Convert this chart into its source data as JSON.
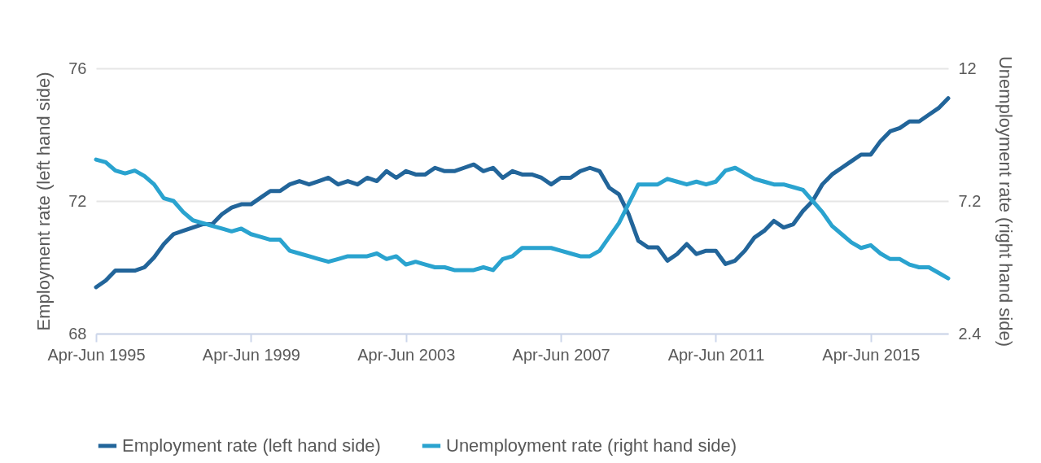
{
  "chart_data": {
    "type": "line",
    "categories": [
      "Apr-Jun 1995",
      null,
      null,
      null,
      null,
      null,
      null,
      null,
      null,
      null,
      null,
      null,
      null,
      null,
      null,
      null,
      "Apr-Jun 1999",
      null,
      null,
      null,
      null,
      null,
      null,
      null,
      null,
      null,
      null,
      null,
      null,
      null,
      null,
      null,
      "Apr-Jun 2003",
      null,
      null,
      null,
      null,
      null,
      null,
      null,
      null,
      null,
      null,
      null,
      null,
      null,
      null,
      null,
      "Apr-Jun 2007",
      null,
      null,
      null,
      null,
      null,
      null,
      null,
      null,
      null,
      null,
      null,
      null,
      null,
      null,
      null,
      "Apr-Jun 2011",
      null,
      null,
      null,
      null,
      null,
      null,
      null,
      null,
      null,
      null,
      null,
      null,
      null,
      null,
      null,
      "Apr-Jun 2015",
      null,
      null,
      null,
      null,
      null,
      null,
      null,
      null
    ],
    "series": [
      {
        "name": "Employment rate (left hand side)",
        "color": "#22659a",
        "values": [
          69.4,
          69.6,
          69.9,
          69.9,
          69.9,
          70.0,
          70.3,
          70.7,
          71.0,
          71.1,
          71.2,
          71.3,
          71.3,
          71.6,
          71.8,
          71.9,
          71.9,
          72.1,
          72.3,
          72.3,
          72.5,
          72.6,
          72.5,
          72.6,
          72.7,
          72.5,
          72.6,
          72.5,
          72.7,
          72.6,
          72.9,
          72.7,
          72.9,
          72.8,
          72.8,
          73.0,
          72.9,
          72.9,
          73.0,
          73.1,
          72.9,
          73.0,
          72.7,
          72.9,
          72.8,
          72.8,
          72.7,
          72.5,
          72.7,
          72.7,
          72.9,
          73.0,
          72.9,
          72.4,
          72.2,
          71.6,
          70.8,
          70.6,
          70.6,
          70.2,
          70.4,
          70.7,
          70.4,
          70.5,
          70.5,
          70.1,
          70.2,
          70.5,
          70.9,
          71.1,
          71.4,
          71.2,
          71.3,
          71.7,
          72.0,
          72.5,
          72.8,
          73.0,
          73.2,
          73.4,
          73.4,
          73.8,
          74.1,
          74.2,
          74.4,
          74.4,
          74.6,
          74.8,
          75.1
        ]
      },
      {
        "name": "Unemployment rate (right hand side)",
        "color": "#2aa3cf",
        "axis": "y2",
        "values": [
          8.7,
          8.6,
          8.3,
          8.2,
          8.3,
          8.1,
          7.8,
          7.3,
          7.2,
          6.8,
          6.5,
          6.4,
          6.3,
          6.2,
          6.1,
          6.2,
          6.0,
          5.9,
          5.8,
          5.8,
          5.4,
          5.3,
          5.2,
          5.1,
          5.0,
          5.1,
          5.2,
          5.2,
          5.2,
          5.3,
          5.1,
          5.2,
          4.9,
          5.0,
          4.9,
          4.8,
          4.8,
          4.7,
          4.7,
          4.7,
          4.8,
          4.7,
          5.1,
          5.2,
          5.5,
          5.5,
          5.5,
          5.5,
          5.4,
          5.3,
          5.2,
          5.2,
          5.4,
          5.9,
          6.4,
          7.1,
          7.8,
          7.8,
          7.8,
          8.0,
          7.9,
          7.8,
          7.9,
          7.8,
          7.9,
          8.3,
          8.4,
          8.2,
          8.0,
          7.9,
          7.8,
          7.8,
          7.7,
          7.6,
          7.2,
          6.8,
          6.3,
          6.0,
          5.7,
          5.5,
          5.6,
          5.3,
          5.1,
          5.1,
          4.9,
          4.8,
          4.8,
          4.6,
          4.4
        ]
      }
    ],
    "ylabel": "Employment rate (left hand side)",
    "y2label": "Unemployment rate (right hand side)",
    "ylim": [
      68,
      76
    ],
    "yticks": [
      68,
      72,
      76
    ],
    "y2lim": [
      2.4,
      12
    ],
    "y2ticks": [
      2.4,
      7.2,
      12
    ],
    "grid": "y",
    "legend": "bottom"
  }
}
